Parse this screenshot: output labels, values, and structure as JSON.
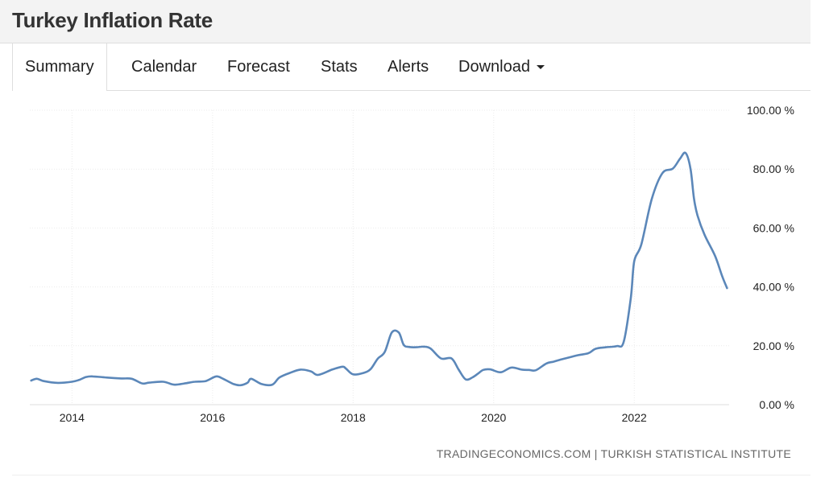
{
  "header": {
    "title": "Turkey Inflation Rate"
  },
  "tabs": [
    {
      "label": "Summary",
      "active": true
    },
    {
      "label": "Calendar"
    },
    {
      "label": "Forecast"
    },
    {
      "label": "Stats"
    },
    {
      "label": "Alerts"
    },
    {
      "label": "Download",
      "dropdown": true
    }
  ],
  "source": "TRADINGECONOMICS.COM | TURKISH STATISTICAL INSTITUTE",
  "chart_data": {
    "type": "line",
    "xlim": [
      2013.4,
      2023.35
    ],
    "ylim": [
      0,
      100
    ],
    "x_ticks": [
      {
        "value": 2014,
        "label": "2014"
      },
      {
        "value": 2016,
        "label": "2016"
      },
      {
        "value": 2018,
        "label": "2018"
      },
      {
        "value": 2020,
        "label": "2020"
      },
      {
        "value": 2022,
        "label": "2022"
      }
    ],
    "y_ticks": [
      {
        "value": 0,
        "label": "0.00 %"
      },
      {
        "value": 20,
        "label": "20.00 %"
      },
      {
        "value": 40,
        "label": "40.00 %"
      },
      {
        "value": 60,
        "label": "60.00 %"
      },
      {
        "value": 80,
        "label": "80.00 %"
      },
      {
        "value": 100,
        "label": "100.00 %"
      }
    ],
    "grid": true,
    "color": "#5b87b9",
    "series": [
      {
        "x": [
          2013.42,
          2013.5,
          2013.6,
          2013.8,
          2014.0,
          2014.1,
          2014.2,
          2014.3,
          2014.5,
          2014.7,
          2014.85,
          2015.0,
          2015.1,
          2015.3,
          2015.45,
          2015.6,
          2015.75,
          2015.9,
          2016.05,
          2016.15,
          2016.3,
          2016.4,
          2016.5,
          2016.55,
          2016.7,
          2016.85,
          2016.95,
          2017.1,
          2017.25,
          2017.4,
          2017.5,
          2017.7,
          2017.85,
          2017.9,
          2018.0,
          2018.15,
          2018.25,
          2018.35,
          2018.45,
          2018.55,
          2018.65,
          2018.72,
          2018.8,
          2018.9,
          2019.0,
          2019.1,
          2019.25,
          2019.4,
          2019.5,
          2019.6,
          2019.7,
          2019.78,
          2019.85,
          2019.95,
          2020.1,
          2020.25,
          2020.4,
          2020.5,
          2020.6,
          2020.75,
          2020.85,
          2021.0,
          2021.2,
          2021.35,
          2021.45,
          2021.6,
          2021.75,
          2021.85,
          2021.95,
          2022.0,
          2022.1,
          2022.25,
          2022.4,
          2022.55,
          2022.65,
          2022.73,
          2022.8,
          2022.85,
          2022.9,
          2023.0,
          2023.15,
          2023.25,
          2023.32
        ],
        "y": [
          8.2,
          8.8,
          8.0,
          7.4,
          7.8,
          8.4,
          9.4,
          9.6,
          9.2,
          8.9,
          8.8,
          7.2,
          7.5,
          7.8,
          6.8,
          7.2,
          7.8,
          8.0,
          9.6,
          8.8,
          7.0,
          6.6,
          7.5,
          8.8,
          7.0,
          6.8,
          9.2,
          10.8,
          11.9,
          11.3,
          10.1,
          11.9,
          12.9,
          12.2,
          10.3,
          10.8,
          12.1,
          15.6,
          17.9,
          24.5,
          24.5,
          20.3,
          19.6,
          19.5,
          19.7,
          19.1,
          15.7,
          15.7,
          12.0,
          8.6,
          9.3,
          10.6,
          11.8,
          12.0,
          11.0,
          12.6,
          11.9,
          11.8,
          11.7,
          14.0,
          14.6,
          15.6,
          16.8,
          17.5,
          19.0,
          19.5,
          19.9,
          21.3,
          36.1,
          48.7,
          54.4,
          69.9,
          78.6,
          80.2,
          83.5,
          85.5,
          80.2,
          70.0,
          64.3,
          57.7,
          50.5,
          43.7,
          39.6
        ]
      }
    ]
  }
}
